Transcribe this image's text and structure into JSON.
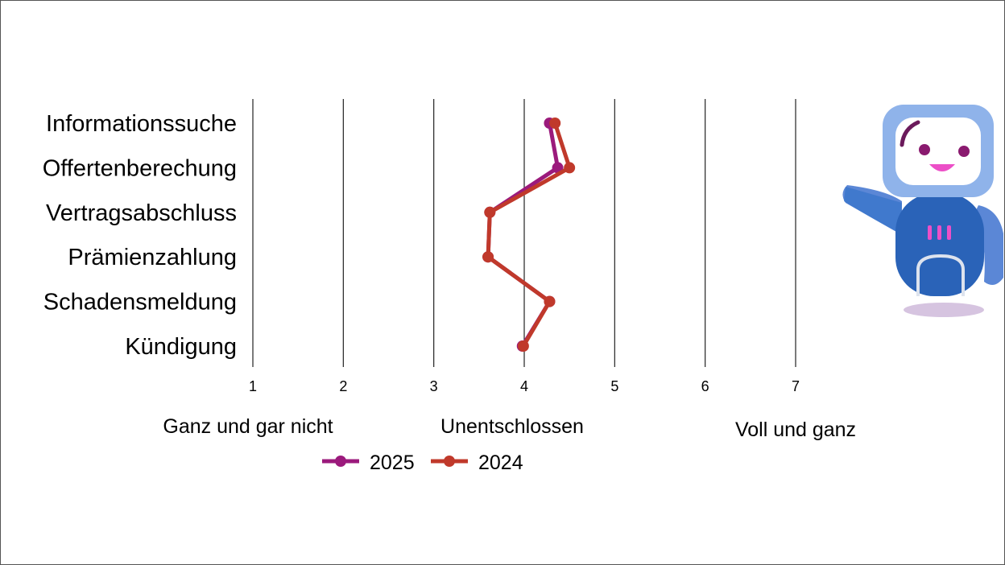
{
  "chart_data": {
    "type": "line",
    "orientation": "horizontal",
    "categories": [
      "Informationssuche",
      "Offertenberechung",
      "Vertragsabschluss",
      "Prämienzahlung",
      "Schadensmeldung",
      "Kündigung"
    ],
    "series": [
      {
        "name": "2025",
        "color": "#9b1a7c",
        "values": [
          4.28,
          4.37,
          3.62,
          3.6,
          4.28,
          3.98
        ]
      },
      {
        "name": "2024",
        "color": "#c0392b",
        "values": [
          4.34,
          4.5,
          3.62,
          3.6,
          4.28,
          3.99
        ]
      }
    ],
    "x_ticks": [
      "1",
      "2",
      "3",
      "4",
      "5",
      "6",
      "7"
    ],
    "xlim": [
      1,
      7
    ],
    "scale_labels": [
      "Ganz und gar nicht",
      "Unentschlossen",
      "Voll und ganz"
    ],
    "grid": "vertical",
    "legend_position": "bottom"
  },
  "mascot": {
    "name": "robot-mascot-icon"
  }
}
